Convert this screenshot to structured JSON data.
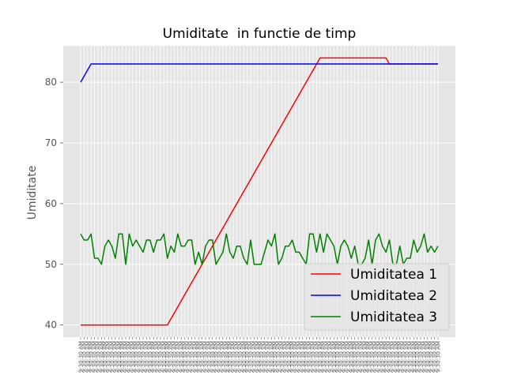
{
  "chart_data": {
    "type": "line",
    "title": "Umiditate  in functie de timp",
    "xlabel": "",
    "ylabel": "Umiditate",
    "ylim": [
      38,
      86
    ],
    "yticks": [
      40,
      50,
      60,
      70,
      80
    ],
    "grid": true,
    "legend_position": "lower-right",
    "x_tick_label": "9:30:30 AM",
    "series": [
      {
        "name": "Umiditatea 1",
        "color": "#ff0000",
        "values": [
          40,
          40,
          40,
          40,
          40,
          40,
          40,
          40,
          40,
          40,
          40,
          40,
          40,
          40,
          40,
          40,
          40,
          40,
          40,
          40,
          40,
          40,
          40,
          40,
          40,
          40,
          41,
          42,
          43,
          44,
          45,
          46,
          47,
          48,
          49,
          50,
          51,
          52,
          53,
          54,
          55,
          56,
          57,
          58,
          59,
          60,
          61,
          62,
          63,
          64,
          65,
          66,
          67,
          68,
          69,
          70,
          71,
          72,
          73,
          74,
          75,
          76,
          77,
          78,
          79,
          80,
          81,
          82,
          83,
          84,
          84,
          84,
          84,
          84,
          84,
          84,
          84,
          84,
          84,
          84,
          84,
          84,
          84,
          84,
          84,
          84,
          84,
          84,
          84,
          83,
          83,
          83,
          83,
          83,
          83,
          83,
          83,
          83,
          83,
          83,
          83,
          83,
          83,
          83
        ]
      },
      {
        "name": "Umiditatea 2",
        "color": "#0000ff",
        "values": [
          80,
          81,
          82,
          83,
          83,
          83,
          83,
          83,
          83,
          83,
          83,
          83,
          83,
          83,
          83,
          83,
          83,
          83,
          83,
          83,
          83,
          83,
          83,
          83,
          83,
          83,
          83,
          83,
          83,
          83,
          83,
          83,
          83,
          83,
          83,
          83,
          83,
          83,
          83,
          83,
          83,
          83,
          83,
          83,
          83,
          83,
          83,
          83,
          83,
          83,
          83,
          83,
          83,
          83,
          83,
          83,
          83,
          83,
          83,
          83,
          83,
          83,
          83,
          83,
          83,
          83,
          83,
          83,
          83,
          83,
          83,
          83,
          83,
          83,
          83,
          83,
          83,
          83,
          83,
          83,
          83,
          83,
          83,
          83,
          83,
          83,
          83,
          83,
          83,
          83,
          83,
          83,
          83,
          83,
          83,
          83,
          83,
          83,
          83,
          83,
          83,
          83,
          83,
          83
        ]
      },
      {
        "name": "Umiditatea 3",
        "color": "#008000",
        "values": [
          55,
          54,
          54,
          55,
          51,
          51,
          50,
          53,
          54,
          53,
          51,
          55,
          55,
          50,
          55,
          53,
          54,
          53,
          52,
          54,
          54,
          52,
          54,
          54,
          55,
          51,
          53,
          52,
          55,
          53,
          53,
          54,
          54,
          50,
          52,
          50,
          53,
          54,
          54,
          50,
          51,
          52,
          55,
          52,
          51,
          53,
          53,
          51,
          50,
          54,
          50,
          50,
          50,
          52,
          54,
          53,
          55,
          50,
          51,
          53,
          53,
          54,
          52,
          52,
          51,
          50,
          55,
          55,
          52,
          55,
          52,
          55,
          54,
          53,
          50,
          53,
          54,
          53,
          51,
          53,
          50,
          50,
          51,
          54,
          50,
          54,
          55,
          53,
          52,
          54,
          50,
          50,
          53,
          50,
          51,
          51,
          54,
          52,
          53,
          55,
          52,
          53,
          52,
          53
        ]
      }
    ]
  }
}
